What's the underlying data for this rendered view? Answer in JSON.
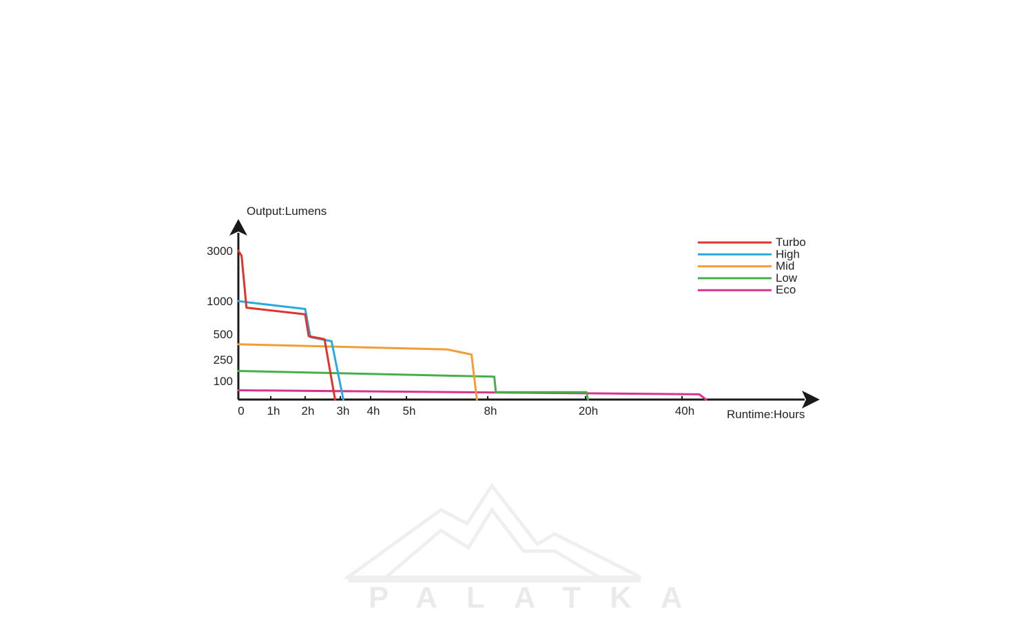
{
  "chart_data": {
    "type": "line",
    "title": "",
    "xlabel": "Runtime:Hours",
    "ylabel": "Output:Lumens",
    "x_scale": "categorical-ticks",
    "y_scale": "categorical-ticks",
    "x_ticks": [
      "0",
      "1h",
      "2h",
      "3h",
      "4h",
      "5h",
      "8h",
      "20h",
      "40h"
    ],
    "y_ticks": [
      "100",
      "250",
      "500",
      "1000",
      "3000"
    ],
    "grid": false,
    "legend_position": "top-right",
    "series": [
      {
        "name": "Turbo",
        "color": "#e0332a",
        "points": [
          [
            0,
            3000
          ],
          [
            0.1,
            2800
          ],
          [
            0.25,
            900
          ],
          [
            2.0,
            800
          ],
          [
            2.1,
            480
          ],
          [
            2.55,
            450
          ],
          [
            2.85,
            0
          ]
        ]
      },
      {
        "name": "High",
        "color": "#2ba8de",
        "points": [
          [
            0,
            1000
          ],
          [
            0.3,
            980
          ],
          [
            2.0,
            880
          ],
          [
            2.15,
            470
          ],
          [
            2.75,
            430
          ],
          [
            3.1,
            0
          ]
        ]
      },
      {
        "name": "Mid",
        "color": "#f39c34",
        "points": [
          [
            0,
            400
          ],
          [
            6.5,
            350
          ],
          [
            7.4,
            300
          ],
          [
            7.6,
            0
          ]
        ]
      },
      {
        "name": "Low",
        "color": "#45b04b",
        "points": [
          [
            0,
            170
          ],
          [
            8.8,
            130
          ],
          [
            9.0,
            40
          ],
          [
            20.2,
            40
          ],
          [
            20.5,
            0
          ]
        ]
      },
      {
        "name": "Eco",
        "color": "#d6338f",
        "points": [
          [
            0,
            50
          ],
          [
            42.5,
            28
          ],
          [
            43.5,
            0
          ]
        ]
      }
    ]
  },
  "watermark": {
    "text": "PALATKA"
  }
}
